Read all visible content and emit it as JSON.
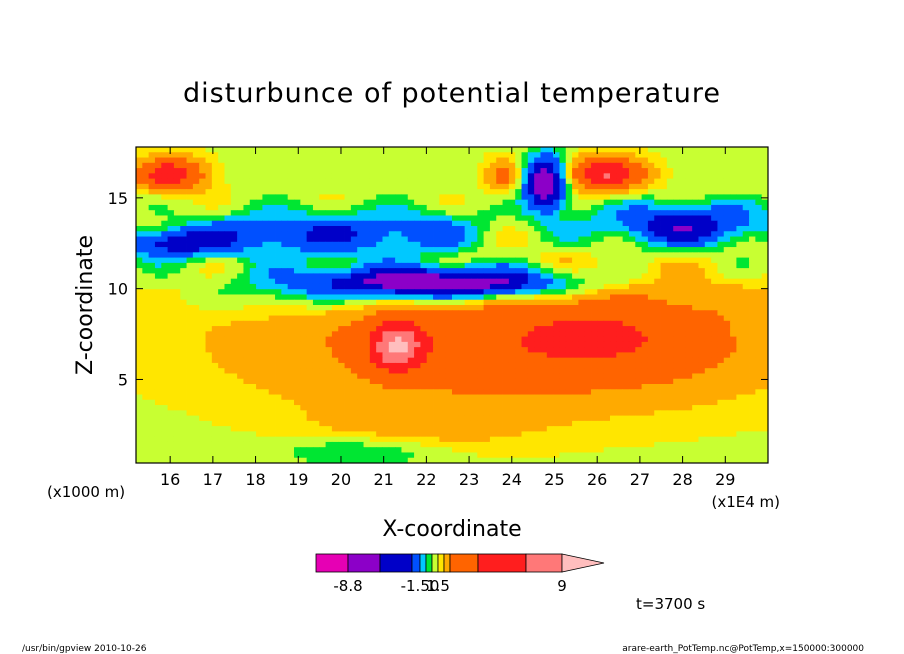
{
  "chart_data": {
    "type": "heatmap",
    "title": "disturbunce of potential temperature",
    "xlabel": "X-coordinate",
    "ylabel": "Z-coordinate",
    "x_unit": "(x1E4 m)",
    "y_unit": "(x1000 m)",
    "xlim": [
      15.2,
      30.0
    ],
    "ylim": [
      0.4,
      17.8
    ],
    "x_ticks": [
      16,
      17,
      18,
      19,
      20,
      21,
      22,
      23,
      24,
      25,
      26,
      27,
      28,
      29
    ],
    "y_ticks": [
      5,
      10,
      15
    ],
    "colorbar": {
      "colors": [
        "#e600b4",
        "#8c00c8",
        "#0000c8",
        "#0050ff",
        "#00c8ff",
        "#00e632",
        "#c8ff32",
        "#ffe600",
        "#ffaa00",
        "#ff6400",
        "#ff1e1e",
        "#ff7878",
        "#ffbebe"
      ],
      "tick_labels": [
        "-8.8",
        "-1.50",
        "1.5",
        "9"
      ],
      "tick_values": [
        -8.8,
        -1.5,
        1.5,
        9.0
      ],
      "extend": "max"
    },
    "annotation": "t=3700 s"
  },
  "footer": {
    "left": "/usr/bin/gpview   2010-10-26",
    "right": "arare-earth_PotTemp.nc@PotTemp,x=150000:300000"
  }
}
